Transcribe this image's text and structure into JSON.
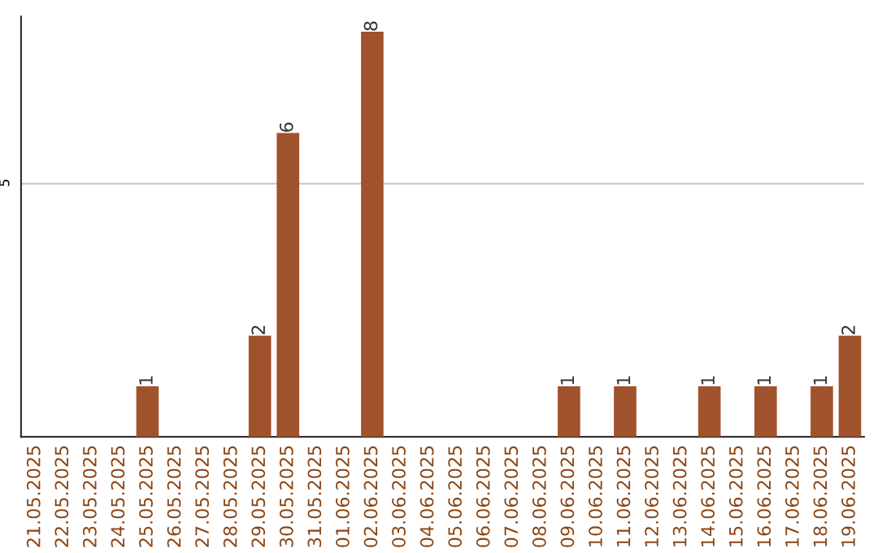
{
  "chart_data": {
    "type": "bar",
    "categories": [
      "21.05.2025",
      "22.05.2025",
      "23.05.2025",
      "24.05.2025",
      "25.05.2025",
      "26.05.2025",
      "27.05.2025",
      "28.05.2025",
      "29.05.2025",
      "30.05.2025",
      "31.05.2025",
      "01.06.2025",
      "02.06.2025",
      "03.06.2025",
      "04.06.2025",
      "05.06.2025",
      "06.06.2025",
      "07.06.2025",
      "08.06.2025",
      "09.06.2025",
      "10.06.2025",
      "11.06.2025",
      "12.06.2025",
      "13.06.2025",
      "14.06.2025",
      "15.06.2025",
      "16.06.2025",
      "17.06.2025",
      "18.06.2025",
      "19.06.2025"
    ],
    "values": [
      0,
      0,
      0,
      0,
      1,
      0,
      0,
      0,
      2,
      6,
      0,
      0,
      8,
      0,
      0,
      0,
      0,
      0,
      0,
      1,
      0,
      1,
      0,
      0,
      1,
      0,
      1,
      0,
      1,
      2
    ],
    "value_labels": [
      null,
      null,
      null,
      null,
      "1",
      null,
      null,
      null,
      "2",
      "6",
      null,
      null,
      "8",
      null,
      null,
      null,
      null,
      null,
      null,
      "1",
      null,
      "1",
      null,
      null,
      "1",
      null,
      "1",
      null,
      "1",
      "2"
    ],
    "color": "#a0522d",
    "ylim": [
      0,
      8.3
    ],
    "yticks": [
      5
    ],
    "grid": "y"
  }
}
